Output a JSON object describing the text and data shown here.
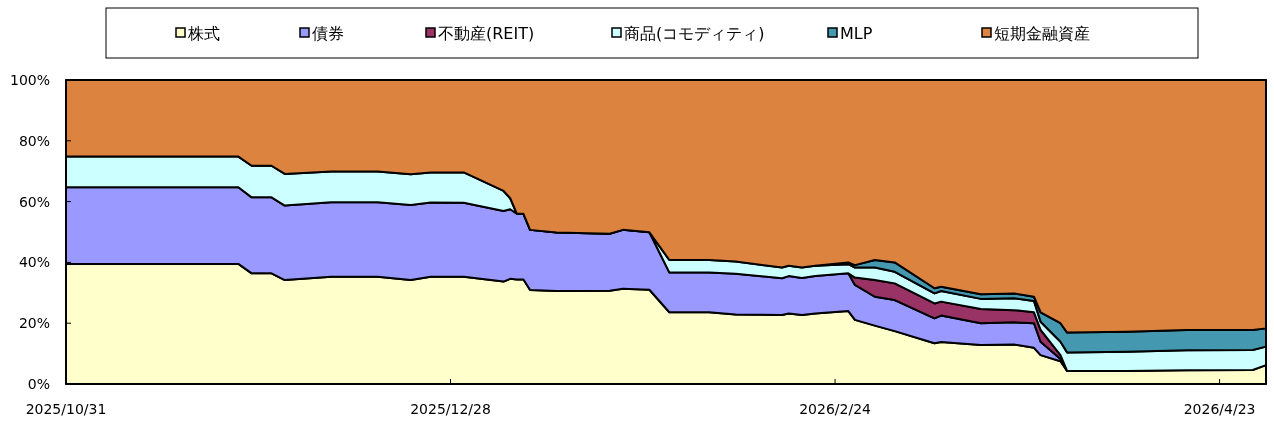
{
  "chart_data": {
    "type": "area",
    "stacked": true,
    "legend": "top",
    "x": [
      "2025-10-31",
      "2025-11-26",
      "2025-11-28",
      "2025-12-01",
      "2025-12-03",
      "2025-12-10",
      "2025-12-17",
      "2025-12-22",
      "2025-12-25",
      "2025-12-30",
      "2026-01-05",
      "2026-01-06",
      "2026-01-07",
      "2026-01-08",
      "2026-01-09",
      "2026-01-13",
      "2026-01-21",
      "2026-01-23",
      "2026-01-27",
      "2026-01-30",
      "2026-02-05",
      "2026-02-09",
      "2026-02-16",
      "2026-02-17",
      "2026-02-19",
      "2026-02-21",
      "2026-02-26",
      "2026-02-27",
      "2026-03-02",
      "2026-03-05",
      "2026-03-11",
      "2026-03-12",
      "2026-03-18",
      "2026-03-23",
      "2026-03-26",
      "2026-03-27",
      "2026-03-30",
      "2026-03-31",
      "2026-04-09",
      "2026-04-18",
      "2026-04-28",
      "2026-04-30"
    ],
    "series": [
      {
        "name": "株式",
        "color": "#ffffcc",
        "values": [
          39.5,
          39.5,
          36.4,
          36.4,
          34.2,
          35.3,
          35.3,
          34.2,
          35.3,
          35.3,
          33.7,
          34.6,
          34.4,
          34.4,
          30.9,
          30.6,
          30.7,
          31.3,
          31.0,
          23.6,
          23.6,
          22.9,
          22.7,
          23.2,
          22.7,
          23.2,
          24.0,
          21.1,
          19.2,
          17.4,
          13.4,
          13.8,
          12.8,
          13.0,
          11.9,
          9.5,
          7.5,
          4.3,
          4.3,
          4.5,
          4.6,
          6.2
        ]
      },
      {
        "name": "債券",
        "color": "#9999ff",
        "values": [
          25.2,
          25.2,
          25.0,
          25.0,
          24.5,
          24.5,
          24.5,
          24.7,
          24.4,
          24.3,
          23.2,
          22.9,
          21.6,
          21.6,
          19.8,
          19.2,
          18.7,
          19.4,
          18.9,
          13.1,
          13.1,
          13.4,
          12.1,
          12.3,
          12.2,
          12.3,
          12.4,
          11.5,
          9.5,
          10.2,
          8.2,
          8.7,
          7.2,
          7.3,
          8.1,
          4.4,
          0.7,
          0,
          null,
          null,
          null,
          null
        ]
      },
      {
        "name": "不動産(REIT)",
        "color": "#993366",
        "values": [
          null,
          null,
          null,
          null,
          null,
          null,
          null,
          null,
          null,
          null,
          null,
          null,
          null,
          null,
          null,
          null,
          null,
          null,
          null,
          null,
          null,
          null,
          null,
          null,
          null,
          null,
          0,
          2.4,
          5.5,
          5.5,
          4.9,
          4.6,
          4.7,
          4.0,
          3.6,
          3.9,
          1.3,
          0,
          null,
          null,
          null,
          null
        ]
      },
      {
        "name": "商品(コモディティ)",
        "color": "#ccffff",
        "values": [
          10.1,
          10.1,
          10.4,
          10.4,
          10.4,
          10.1,
          10.1,
          10.1,
          9.9,
          10.0,
          6.6,
          3.6,
          0,
          0,
          0,
          0,
          0,
          0,
          0,
          4.1,
          4.1,
          4.0,
          3.5,
          3.4,
          3.4,
          3.4,
          3.0,
          3.3,
          4.1,
          3.8,
          3.3,
          3.5,
          3.3,
          3.9,
          3.7,
          2.7,
          4.4,
          6.1,
          6.3,
          6.6,
          6.6,
          6.1
        ]
      },
      {
        "name": "MLP",
        "color": "#4499b0",
        "values": [
          null,
          null,
          null,
          null,
          null,
          null,
          null,
          null,
          null,
          null,
          null,
          null,
          null,
          null,
          null,
          null,
          null,
          null,
          null,
          null,
          null,
          null,
          null,
          null,
          null,
          0,
          0.6,
          0.8,
          2.5,
          3.1,
          1.7,
          1.4,
          1.5,
          1.6,
          1.4,
          3.1,
          6.1,
          6.5,
          6.6,
          6.7,
          6.6,
          6.0
        ]
      },
      {
        "name": "短期金融資産",
        "color": "#dc843f",
        "values": [
          25.2,
          25.2,
          28.2,
          28.2,
          30.9,
          30.1,
          30.1,
          31.0,
          30.4,
          30.4,
          36.5,
          38.9,
          44.0,
          44.0,
          49.3,
          50.2,
          50.6,
          49.3,
          50.1,
          59.2,
          59.2,
          59.7,
          61.7,
          61.1,
          61.7,
          61.1,
          60.0,
          60.9,
          59.2,
          60.0,
          68.5,
          68.0,
          70.5,
          70.2,
          71.3,
          76.4,
          80.0,
          83.1,
          82.8,
          82.2,
          82.2,
          81.7
        ]
      }
    ],
    "xlim": [
      "2025-10-31",
      "2026-04-30"
    ],
    "xticks": [
      {
        "value": "2025-10-31",
        "label": "2025/10/31"
      },
      {
        "value": "2025-12-28",
        "label": "2025/12/28"
      },
      {
        "value": "2026-02-24",
        "label": "2026/2/24"
      },
      {
        "value": "2026-04-23",
        "label": "2026/4/23"
      }
    ],
    "ylim": [
      0,
      100
    ],
    "yticks": [
      {
        "value": 0,
        "label": "0%"
      },
      {
        "value": 20,
        "label": "20%"
      },
      {
        "value": 40,
        "label": "40%"
      },
      {
        "value": 60,
        "label": "60%"
      },
      {
        "value": 80,
        "label": "80%"
      },
      {
        "value": 100,
        "label": "100%"
      }
    ]
  }
}
